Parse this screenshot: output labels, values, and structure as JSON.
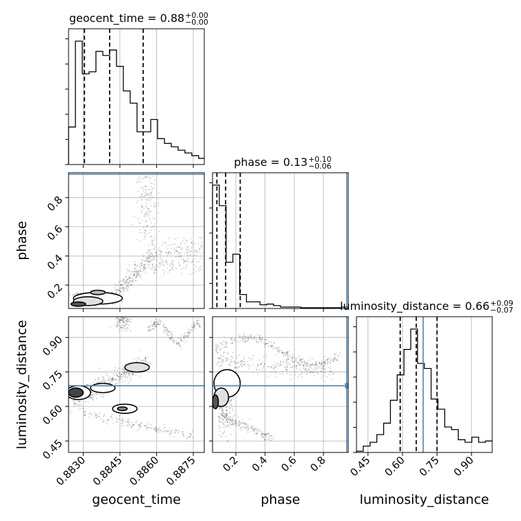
{
  "chart_data": {
    "type": "corner",
    "parameters": [
      {
        "name": "geocent_time",
        "axis_label": "geocent_time",
        "title": "geocent_time = 0.88",
        "title_sup": "+0.00",
        "title_sub": "−0.00",
        "range": [
          0.8824,
          0.88795
        ],
        "ticks": [
          0.883,
          0.8845,
          0.886,
          0.8875
        ],
        "tick_labels": [
          "0.8830",
          "0.8845",
          "0.8860",
          "0.8875"
        ],
        "hist": {
          "edges": [
            0.8824,
            0.88268,
            0.88296,
            0.88324,
            0.88352,
            0.8838,
            0.88408,
            0.88436,
            0.88464,
            0.88492,
            0.8852,
            0.88548,
            0.88576,
            0.88604,
            0.88632,
            0.8866,
            0.88688,
            0.88716,
            0.88744,
            0.88772,
            0.88795
          ],
          "counts": [
            55,
            181,
            133,
            136,
            166,
            160,
            168,
            144,
            108,
            90,
            48,
            48,
            66,
            38,
            31,
            26,
            21,
            17,
            13,
            9
          ]
        },
        "quantiles": [
          0.88305,
          0.88408,
          0.88545
        ],
        "truth": null
      },
      {
        "name": "phase",
        "axis_label": "phase",
        "title": "phase = 0.13",
        "title_sup": "+0.10",
        "title_sub": "−0.06",
        "range": [
          0.04,
          0.97
        ],
        "ticks": [
          0.2,
          0.4,
          0.6,
          0.8
        ],
        "tick_labels": [
          "0.2",
          "0.4",
          "0.6",
          "0.8"
        ],
        "hist": {
          "edges": [
            0.04,
            0.0865,
            0.133,
            0.1795,
            0.226,
            0.2725,
            0.319,
            0.3655,
            0.412,
            0.4585,
            0.505,
            0.5515,
            0.598,
            0.6445,
            0.691,
            0.7375,
            0.784,
            0.8305,
            0.877,
            0.9235,
            0.97
          ],
          "counts": [
            168,
            140,
            63,
            74,
            19,
            9,
            9,
            5,
            6,
            4,
            2,
            2,
            2,
            1,
            1,
            1,
            1,
            1,
            1,
            2
          ]
        },
        "quantiles": [
          0.07,
          0.13,
          0.23
        ],
        "truth": 0.96
      },
      {
        "name": "luminosity_distance",
        "axis_label": "luminosity_distance",
        "title": "luminosity_distance = 0.66",
        "title_sup": "+0.09",
        "title_sub": "−0.07",
        "range": [
          0.4,
          0.99
        ],
        "ticks": [
          0.45,
          0.6,
          0.75,
          0.9
        ],
        "tick_labels": [
          "0.45",
          "0.60",
          "0.75",
          "0.90"
        ],
        "hist": {
          "edges": [
            0.4,
            0.4295,
            0.459,
            0.4885,
            0.518,
            0.5475,
            0.577,
            0.6065,
            0.636,
            0.6655,
            0.695,
            0.7245,
            0.754,
            0.7835,
            0.813,
            0.8425,
            0.872,
            0.9015,
            0.931,
            0.9605,
            0.99
          ],
          "counts": [
            1,
            5,
            8,
            14,
            23,
            41,
            61,
            81,
            97,
            70,
            66,
            42,
            34,
            20,
            18,
            10,
            8,
            12,
            8,
            9
          ]
        },
        "quantiles": [
          0.59,
          0.66,
          0.75
        ],
        "truth": 0.69
      }
    ],
    "truths_color": "#4682b4",
    "grid": true
  }
}
